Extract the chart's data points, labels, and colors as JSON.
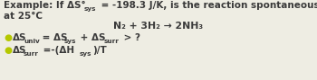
{
  "bg_color": "#eeede3",
  "text_color": "#3a3a3a",
  "bullet_color": "#b5c800",
  "font_size": 7.5,
  "font_size_sub": 5.2,
  "font_size_reaction": 7.8,
  "lines": {
    "line1_prefix": "Example: If ΔS°",
    "line1_sub": "sys",
    "line1_suffix": " = -198.3 J/K, is the reaction spontaneous",
    "line2": "at 25°C",
    "reaction": "N₂ + 3H₂ → 2NH₃",
    "b1_pre": "ΔS",
    "b1_sub1": "univ",
    "b1_mid": " = ΔS",
    "b1_sub2": "sys",
    "b1_mid2": " + ΔS",
    "b1_sub3": "surr",
    "b1_end": " > ?",
    "b2_pre": "ΔS",
    "b2_sub1": "surr",
    "b2_mid": " =-(ΔH",
    "b2_sub2": "sys",
    "b2_end": ")/T"
  }
}
